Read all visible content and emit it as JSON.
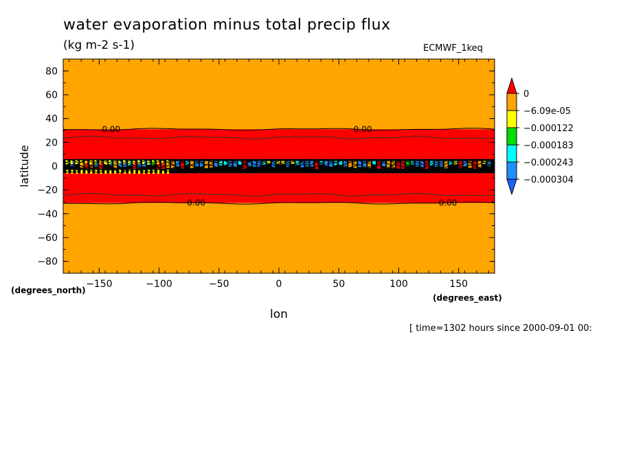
{
  "chart_data": {
    "type": "heatmap",
    "title": "water evaporation minus total precip flux",
    "units": "(kg m-2 s-1)",
    "source_label": "ECMWF_1keq",
    "xlabel": "lon",
    "ylabel": "latitude",
    "x_units": "(degrees_east)",
    "y_units": "(degrees_north)",
    "time_info": "[ time=1302 hours since 2000-09-01 00:",
    "xlim": [
      -180,
      180
    ],
    "ylim": [
      -90,
      90
    ],
    "x_ticks": [
      -150,
      -100,
      -50,
      0,
      50,
      100,
      150
    ],
    "y_ticks": [
      -80,
      -60,
      -40,
      -20,
      0,
      20,
      40,
      60,
      80
    ],
    "colorbar": {
      "levels": [
        "0",
        "-6.09e-05",
        "-0.000122",
        "-0.000183",
        "-0.000243",
        "-0.000304"
      ],
      "colors": [
        "#ff0000",
        "#ffa500",
        "#ffff00",
        "#00dd00",
        "#00ffff",
        "#1e90ff",
        "#1e60ff"
      ]
    },
    "bands": [
      {
        "lat_min": 31,
        "lat_max": 90,
        "color": "#ffa500"
      },
      {
        "lat_min": 6,
        "lat_max": 31,
        "color": "#ff0000"
      },
      {
        "lat_min": -6,
        "lat_max": 6,
        "color": "#000000"
      },
      {
        "lat_min": -31,
        "lat_max": -6,
        "color": "#ff0000"
      },
      {
        "lat_min": -90,
        "lat_max": -31,
        "color": "#ffa500"
      }
    ],
    "contour_labels": [
      {
        "text": "0.00",
        "lon": -140,
        "lat": 31
      },
      {
        "text": "0.00",
        "lon": 70,
        "lat": 31
      },
      {
        "text": "0.00",
        "lon": -69,
        "lat": -31
      },
      {
        "text": "0.00",
        "lon": 141,
        "lat": -31
      }
    ]
  }
}
